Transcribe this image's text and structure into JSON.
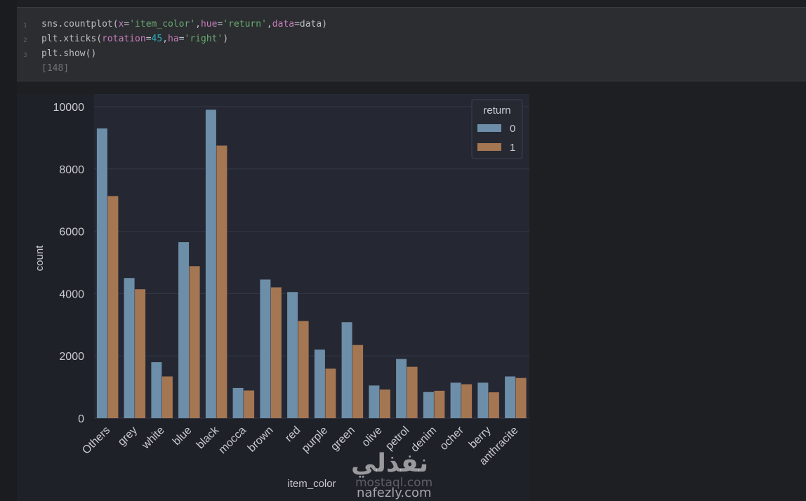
{
  "code_cell": {
    "line_numbers": [
      "1",
      "2",
      "3"
    ],
    "lines": [
      [
        {
          "t": "sns.countplot(",
          "c": "plain"
        },
        {
          "t": "x",
          "c": "param"
        },
        {
          "t": "=",
          "c": "plain"
        },
        {
          "t": "'item_color'",
          "c": "str"
        },
        {
          "t": ",",
          "c": "plain"
        },
        {
          "t": "hue",
          "c": "param"
        },
        {
          "t": "=",
          "c": "plain"
        },
        {
          "t": "'return'",
          "c": "str"
        },
        {
          "t": ",",
          "c": "plain"
        },
        {
          "t": "data",
          "c": "param"
        },
        {
          "t": "=data)",
          "c": "plain"
        }
      ],
      [
        {
          "t": "plt.xticks(",
          "c": "plain"
        },
        {
          "t": "rotation",
          "c": "param"
        },
        {
          "t": "=",
          "c": "plain"
        },
        {
          "t": "45",
          "c": "num"
        },
        {
          "t": ",",
          "c": "plain"
        },
        {
          "t": "ha",
          "c": "param"
        },
        {
          "t": "=",
          "c": "plain"
        },
        {
          "t": "'right'",
          "c": "str"
        },
        {
          "t": ")",
          "c": "plain"
        }
      ],
      [
        {
          "t": "plt.show()",
          "c": "plain"
        }
      ]
    ],
    "execution_count": "[148]"
  },
  "colors": {
    "series0": "#6d8ea8",
    "series1": "#a57652",
    "plot_bg": "#252833",
    "text": "#c9cbd0"
  },
  "chart_data": {
    "type": "bar",
    "xlabel": "item_color",
    "ylabel": "count",
    "ylim": [
      0,
      10200
    ],
    "yticks": [
      0,
      2000,
      4000,
      6000,
      8000,
      10000
    ],
    "categories": [
      "Others",
      "grey",
      "white",
      "blue",
      "black",
      "mocca",
      "brown",
      "red",
      "purple",
      "green",
      "olive",
      "petrol",
      "denim",
      "ocher",
      "berry",
      "anthracite"
    ],
    "series": [
      {
        "name": "0",
        "values": [
          9300,
          4500,
          1800,
          5650,
          9900,
          970,
          4450,
          4050,
          2200,
          3080,
          1050,
          1900,
          840,
          1140,
          1140,
          1340
        ]
      },
      {
        "name": "1",
        "values": [
          7130,
          4140,
          1340,
          4880,
          8750,
          890,
          4200,
          3120,
          1590,
          2350,
          920,
          1650,
          880,
          1090,
          830,
          1290
        ]
      }
    ],
    "legend": {
      "title": "return",
      "position": "top-right"
    },
    "grid": true
  },
  "watermark": {
    "arabic": "نفذلي",
    "url_faint": "mostaql.com",
    "url": "nafezly.com"
  }
}
